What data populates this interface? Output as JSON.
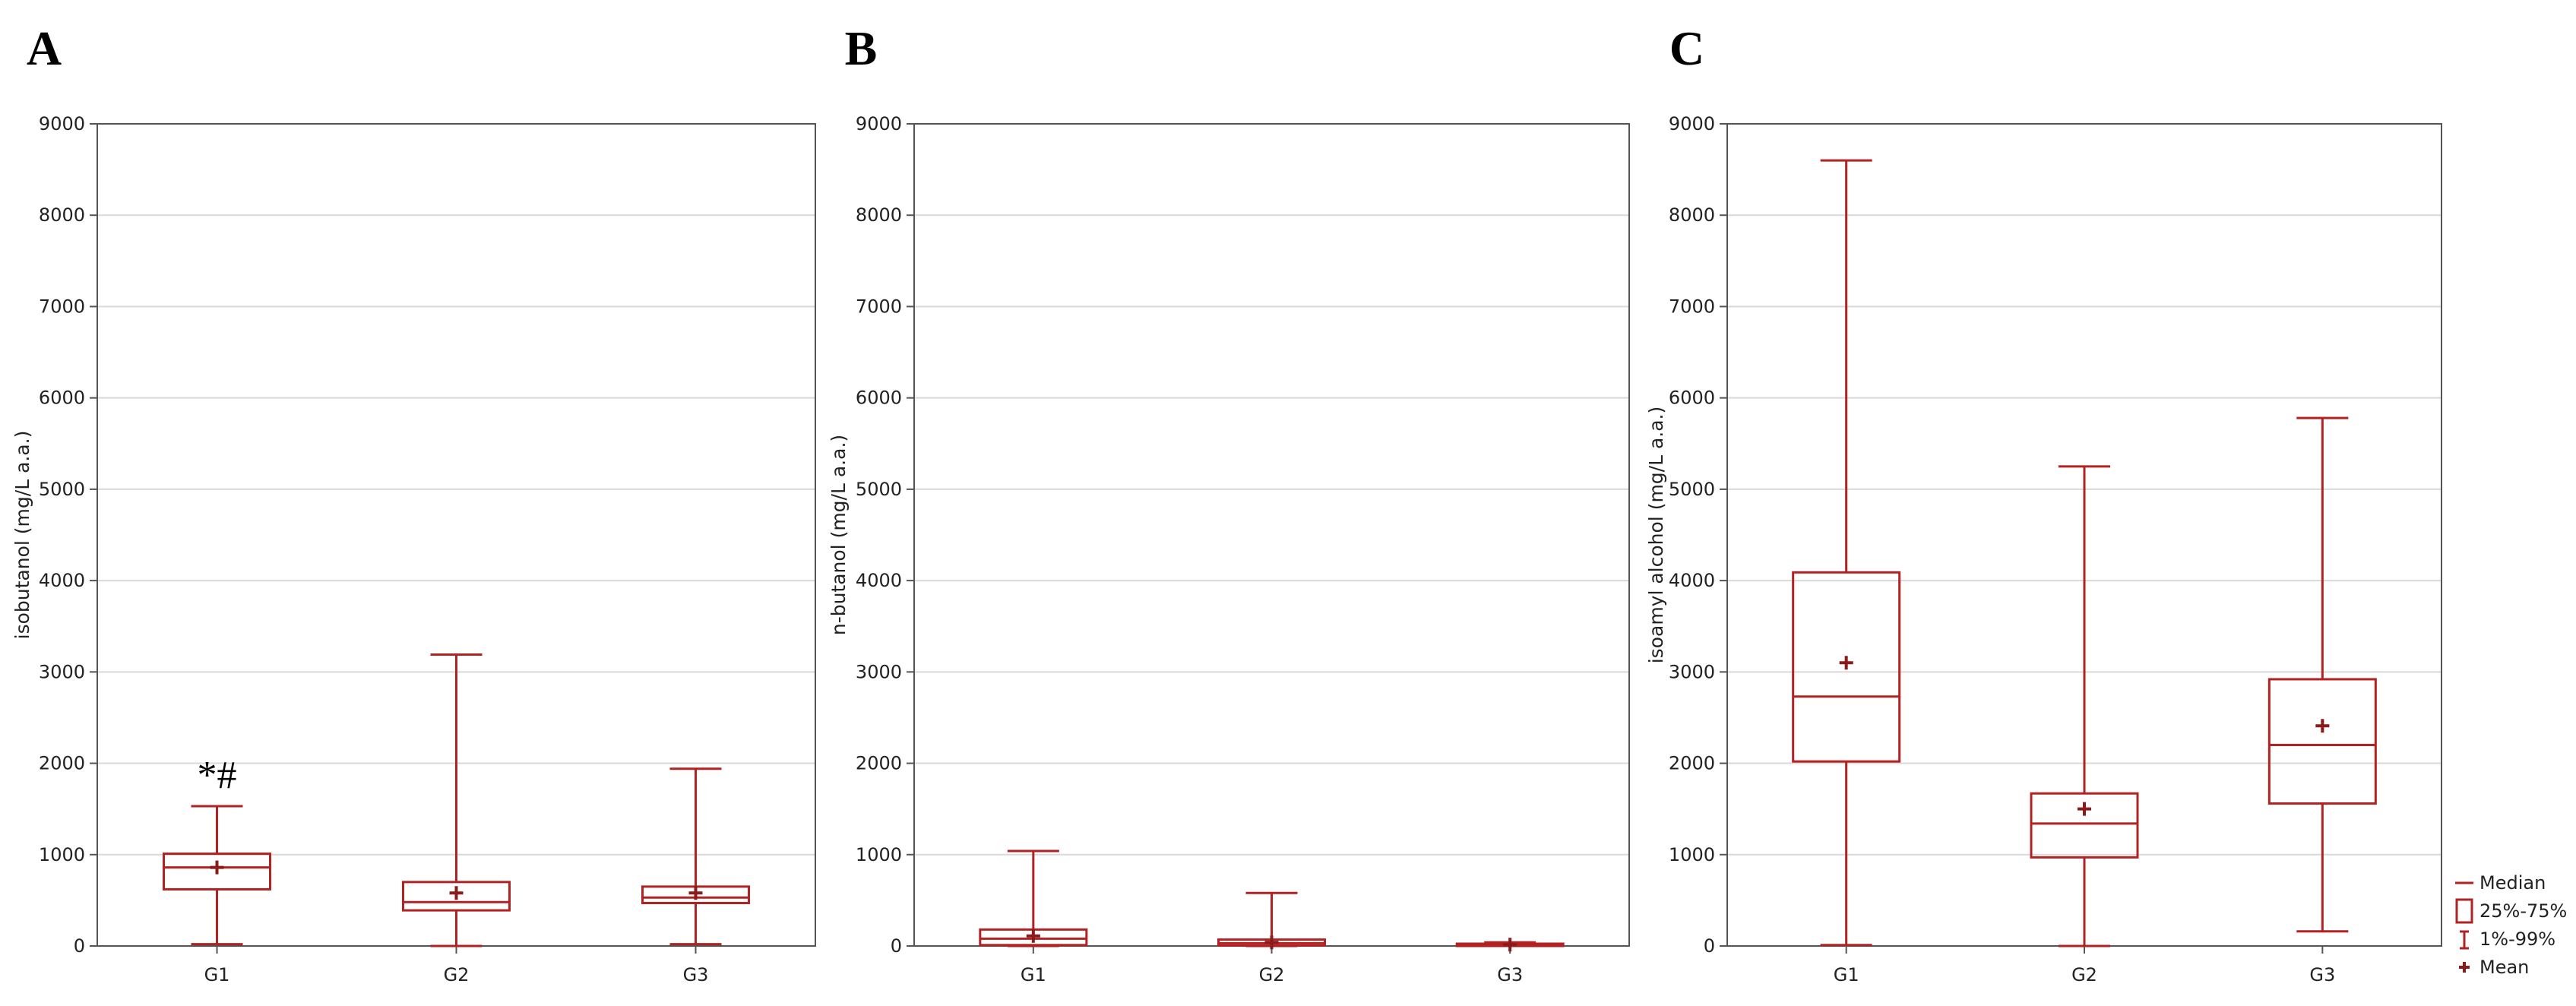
{
  "colors": {
    "box": "#b22222",
    "mean": "#8b1a1a",
    "grid": "#d9d9d9",
    "frame": "#555555"
  },
  "chart_data": [
    {
      "type": "box",
      "panel": "A",
      "ylabel": "isobutanol (mg/L a.a.)",
      "ylim": [
        0,
        9000
      ],
      "yticks": [
        0,
        1000,
        2000,
        3000,
        4000,
        5000,
        6000,
        7000,
        8000,
        9000
      ],
      "grid": true,
      "categories": [
        "G1",
        "G2",
        "G3"
      ],
      "boxes": [
        {
          "category": "G1",
          "p1": 20,
          "q1": 620,
          "median": 860,
          "q3": 1010,
          "p99": 1530,
          "mean": 860
        },
        {
          "category": "G2",
          "p1": 0,
          "q1": 390,
          "median": 480,
          "q3": 700,
          "p99": 3190,
          "mean": 580
        },
        {
          "category": "G3",
          "p1": 20,
          "q1": 470,
          "median": 530,
          "q3": 650,
          "p99": 1940,
          "mean": 580
        }
      ],
      "annotations": [
        {
          "category": "G1",
          "text": "*#",
          "y": 1880
        }
      ]
    },
    {
      "type": "box",
      "panel": "B",
      "ylabel": "n-butanol (mg/L a.a.)",
      "ylim": [
        0,
        9000
      ],
      "yticks": [
        0,
        1000,
        2000,
        3000,
        4000,
        5000,
        6000,
        7000,
        8000,
        9000
      ],
      "grid": true,
      "categories": [
        "G1",
        "G2",
        "G3"
      ],
      "boxes": [
        {
          "category": "G1",
          "p1": 0,
          "q1": 10,
          "median": 80,
          "q3": 180,
          "p99": 1040,
          "mean": 110
        },
        {
          "category": "G2",
          "p1": 0,
          "q1": 5,
          "median": 30,
          "q3": 70,
          "p99": 580,
          "mean": 40
        },
        {
          "category": "G3",
          "p1": 0,
          "q1": 0,
          "median": 10,
          "q3": 25,
          "p99": 40,
          "mean": 15
        }
      ],
      "annotations": []
    },
    {
      "type": "box",
      "panel": "C",
      "ylabel": "isoamyl alcohol (mg/L a.a.)",
      "ylim": [
        0,
        9000
      ],
      "yticks": [
        0,
        1000,
        2000,
        3000,
        4000,
        5000,
        6000,
        7000,
        8000,
        9000
      ],
      "grid": true,
      "categories": [
        "G1",
        "G2",
        "G3"
      ],
      "boxes": [
        {
          "category": "G1",
          "p1": 10,
          "q1": 2020,
          "median": 2730,
          "q3": 4090,
          "p99": 8600,
          "mean": 3100
        },
        {
          "category": "G2",
          "p1": 0,
          "q1": 970,
          "median": 1340,
          "q3": 1670,
          "p99": 5250,
          "mean": 1500
        },
        {
          "category": "G3",
          "p1": 160,
          "q1": 1560,
          "median": 2200,
          "q3": 2920,
          "p99": 5780,
          "mean": 2410
        }
      ],
      "annotations": [],
      "legend": {
        "placement": "bottom-right",
        "items": [
          {
            "symbol": "median",
            "label": "Median"
          },
          {
            "symbol": "box",
            "label": "25%-75%"
          },
          {
            "symbol": "whisker",
            "label": "1%-99%"
          },
          {
            "symbol": "mean",
            "label": "Mean"
          }
        ]
      }
    }
  ]
}
